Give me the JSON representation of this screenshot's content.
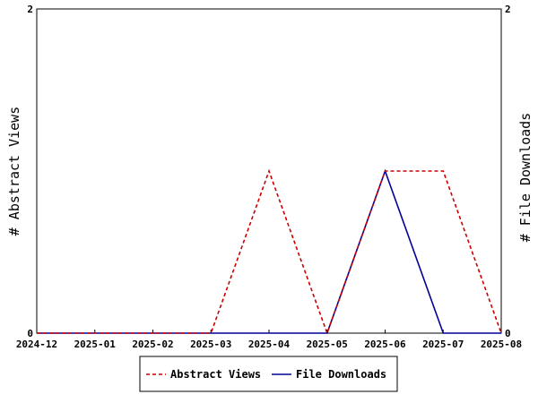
{
  "chart_data": {
    "type": "line",
    "categories": [
      "2024-12",
      "2025-01",
      "2025-02",
      "2025-03",
      "2025-04",
      "2025-05",
      "2025-06",
      "2025-07",
      "2025-08"
    ],
    "series": [
      {
        "name": "Abstract Views",
        "values": [
          0,
          0,
          0,
          0,
          1,
          0,
          1,
          1,
          0
        ],
        "color": "#cc0000",
        "dash": "dashed",
        "axis": "left"
      },
      {
        "name": "File Downloads",
        "values": [
          0,
          0,
          0,
          0,
          0,
          0,
          1,
          0,
          0
        ],
        "color": "#000099",
        "dash": "solid",
        "axis": "right"
      }
    ],
    "ylabel_left": "# Abstract Views",
    "ylabel_right": "# File Downloads",
    "ylim_left": [
      0,
      2
    ],
    "ylim_right": [
      0,
      2
    ],
    "yticks_left": [
      "0",
      "2"
    ],
    "yticks_right": [
      "0",
      "2"
    ],
    "grid": false,
    "legend_position": "bottom-center"
  }
}
